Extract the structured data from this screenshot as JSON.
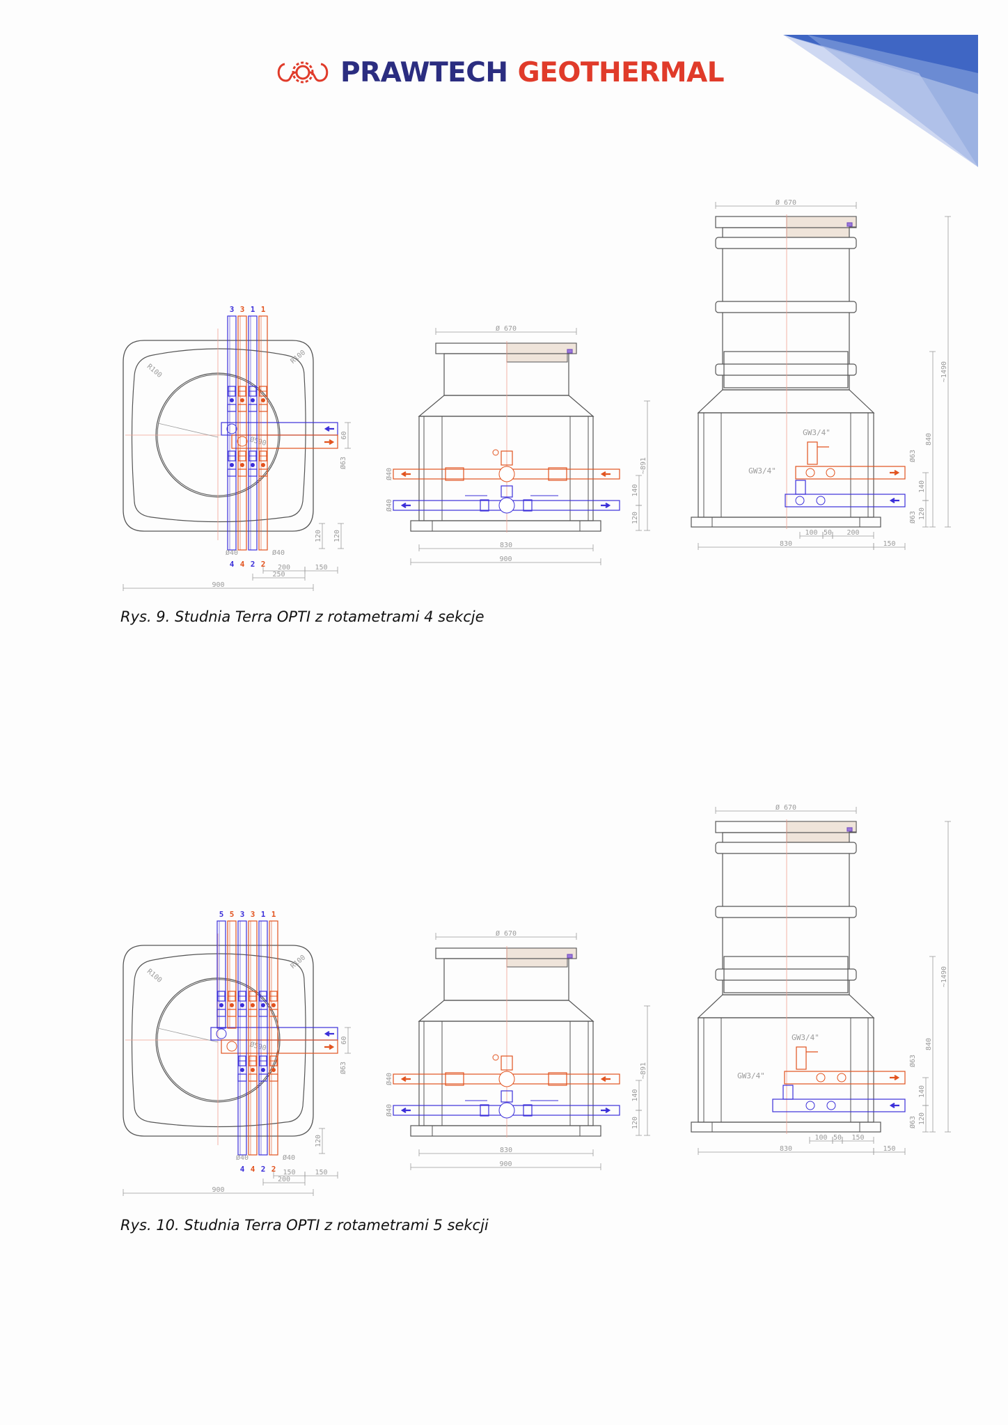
{
  "header": {
    "logo_word_1": "PRAWTECH",
    "logo_word_2": "GEOTHERMAL",
    "logo_icon": "gear-waves-logo-icon"
  },
  "colors": {
    "brand_blue": "#2b2d80",
    "brand_red": "#e03b2a",
    "supply_pipe": "#e2531e",
    "return_pipe": "#3b2fd9",
    "outline": "#555555",
    "dimension": "#9a9a9a",
    "corner_accent": "#4a70c8"
  },
  "figures": [
    {
      "caption": "Rys. 9. Studnia Terra OPTI z rotametrami 4 sekcje",
      "plan": {
        "top_labels": [
          "3",
          "3",
          "1",
          "1"
        ],
        "bottom_labels": [
          "4",
          "4",
          "2",
          "2"
        ],
        "radius_labels": [
          "R100",
          "R100"
        ],
        "circle_label": "Ø590",
        "dim_60": "60",
        "dim_d63": "Ø63",
        "dim_d40_left": "Ø40",
        "dim_d40_right": "Ø40",
        "dim_120_a": "120",
        "dim_120_b": "120",
        "dim_inner": "200",
        "dim_outer_offset": "150",
        "dim_span": "250",
        "dim_width": "900"
      },
      "front": {
        "dim_top": "Ø 670",
        "dim_height": "~891",
        "dim_d40_top": "Ø40",
        "dim_d40_bottom": "Ø40",
        "dim_140": "140",
        "dim_120": "120",
        "dim_830": "830",
        "dim_900": "900"
      },
      "side": {
        "dim_top": "Ø 670",
        "dim_height": "~1490",
        "dim_840": "840",
        "dim_d63_top": "Ø63",
        "dim_d63_bottom": "Ø63",
        "dim_140": "140",
        "dim_120": "120",
        "label_gw_top": "GW3/4\"",
        "label_gw_side": "GW3/4\"",
        "dim_100": "100",
        "dim_50": "50",
        "dim_last": "200",
        "dim_830": "830",
        "dim_150": "150"
      }
    },
    {
      "caption": "Rys. 10. Studnia Terra OPTI z rotametrami 5 sekcji",
      "plan": {
        "top_labels": [
          "5",
          "5",
          "3",
          "3",
          "1",
          "1"
        ],
        "bottom_labels": [
          "4",
          "4",
          "2",
          "2"
        ],
        "radius_labels": [
          "R100",
          "R100"
        ],
        "circle_label": "Ø590",
        "dim_60": "60",
        "dim_d63": "Ø63",
        "dim_d40_left": "Ø40",
        "dim_d40_right": "Ø40",
        "dim_120_a": "120",
        "dim_inner": "150",
        "dim_outer_offset": "150",
        "dim_span": "200",
        "dim_width": "900"
      },
      "front": {
        "dim_top": "Ø 670",
        "dim_height": "~891",
        "dim_d40_top": "Ø40",
        "dim_d40_bottom": "Ø40",
        "dim_140": "140",
        "dim_120": "120",
        "dim_830": "830",
        "dim_900": "900"
      },
      "side": {
        "dim_top": "Ø 670",
        "dim_height": "~1490",
        "dim_840": "840",
        "dim_d63_top": "Ø63",
        "dim_d63_bottom": "Ø63",
        "dim_140": "140",
        "dim_120": "120",
        "label_gw_top": "GW3/4\"",
        "label_gw_side": "GW3/4\"",
        "dim_100": "100",
        "dim_50": "50",
        "dim_last": "150",
        "dim_830": "830",
        "dim_150": "150"
      }
    }
  ]
}
